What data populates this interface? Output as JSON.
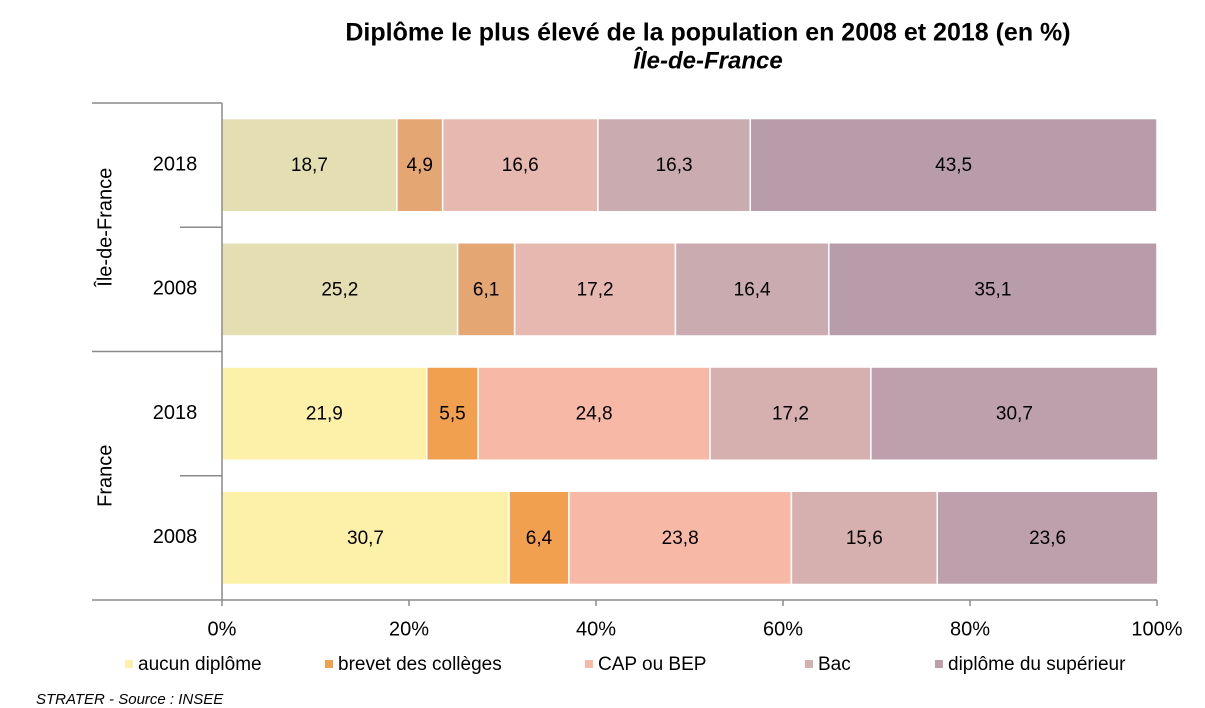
{
  "chart_data": {
    "type": "stacked-bar-horizontal",
    "title": "Diplôme le plus élevé de la population en 2008 et 2018 (en %)",
    "subtitle": "Île-de-France",
    "source": "STRATER - Source :  INSEE",
    "groups": [
      {
        "name": "Île-de-France",
        "categories": [
          "2018",
          "2008"
        ]
      },
      {
        "name": "France",
        "categories": [
          "2018",
          "2008"
        ]
      }
    ],
    "series": [
      {
        "name": "aucun diplôme",
        "color": "#fdf0a8",
        "colors": [
          "#e4deb2",
          "#e4deb2",
          "#fdf0a8",
          "#fdf0a8"
        ],
        "values": [
          18.7,
          25.2,
          21.9,
          30.7
        ],
        "value_labels": [
          "18,7",
          "25,2",
          "21,9",
          "30,7"
        ]
      },
      {
        "name": "brevet des collèges",
        "color": "#f0a04e",
        "colors": [
          "#e4a672",
          "#e4a672",
          "#f0a04e",
          "#f0a04e"
        ],
        "values": [
          4.9,
          6.1,
          5.5,
          6.4
        ],
        "value_labels": [
          "4,9",
          "6,1",
          "5,5",
          "6,4"
        ]
      },
      {
        "name": "CAP ou BEP",
        "color": "#f8b8a6",
        "colors": [
          "#e6b8b0",
          "#e6b8b0",
          "#f8b8a6",
          "#f8b8a6"
        ],
        "values": [
          16.6,
          17.2,
          24.8,
          23.8
        ],
        "value_labels": [
          "16,6",
          "17,2",
          "24,8",
          "23,8"
        ]
      },
      {
        "name": "Bac",
        "color": "#d6b0ae",
        "colors": [
          "#c9abb0",
          "#c9abb0",
          "#d6b0ae",
          "#d6b0ae"
        ],
        "values": [
          16.3,
          16.4,
          17.2,
          15.6
        ],
        "value_labels": [
          "16,3",
          "16,4",
          "17,2",
          "15,6"
        ]
      },
      {
        "name": "diplôme du supérieur",
        "color": "#bea0ac",
        "colors": [
          "#b89caa",
          "#b89caa",
          "#bea0ac",
          "#bea0ac"
        ],
        "values": [
          43.5,
          35.1,
          30.7,
          23.6
        ],
        "value_labels": [
          "43,5",
          "35,1",
          "30,7",
          "23,6"
        ]
      }
    ],
    "xlim": [
      0,
      100
    ],
    "xticks": [
      {
        "value": 0,
        "label": "0%"
      },
      {
        "value": 20,
        "label": "20%"
      },
      {
        "value": 40,
        "label": "40%"
      },
      {
        "value": 60,
        "label": "60%"
      },
      {
        "value": 80,
        "label": "80%"
      },
      {
        "value": 100,
        "label": "100%"
      }
    ],
    "legend": "bottom"
  }
}
